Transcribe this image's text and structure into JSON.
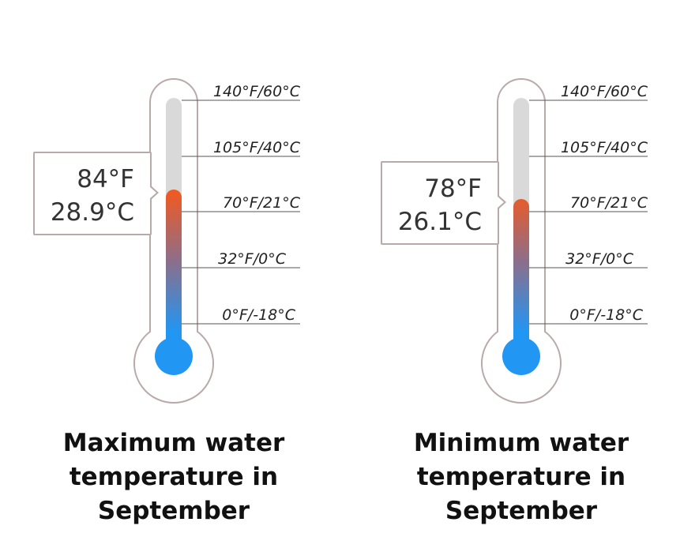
{
  "scale_labels": [
    "140°F/60°C",
    "105°F/40°C",
    "70°F/21°C",
    "32°F/0°C",
    "0°F/-18°C"
  ],
  "scale_values_f": [
    140,
    105,
    70,
    32,
    0
  ],
  "thermometers": [
    {
      "reading_f": "84°F",
      "reading_c": "28.9°C",
      "level_f": 84,
      "caption": "Maximum water temperature in September"
    },
    {
      "reading_f": "78°F",
      "reading_c": "26.1°C",
      "level_f": 78,
      "caption": "Minimum water temperature in September"
    }
  ],
  "colors": {
    "outline": "#b9aaaa",
    "tube_empty": "#d9d9d9",
    "fill_hot": "#ee5a24",
    "fill_mid": "#8a6f8c",
    "fill_cold": "#2196f3",
    "tick_line": "#555555"
  }
}
